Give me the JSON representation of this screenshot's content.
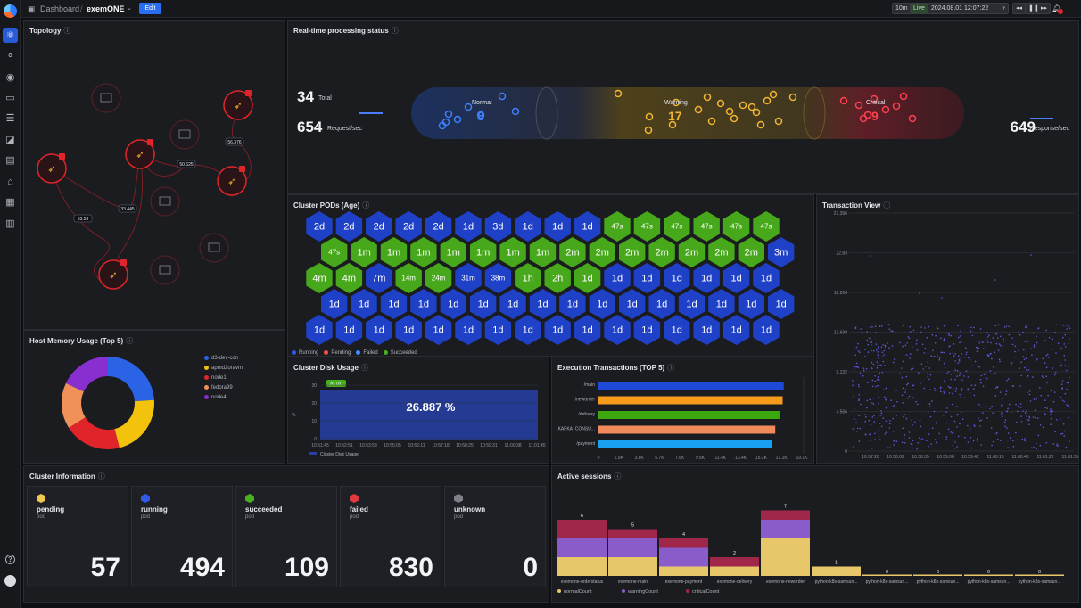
{
  "header": {
    "breadcrumb_root": "Dashboard",
    "separator": "/",
    "dashboard_name": "exemONE",
    "edit_label": "Edit",
    "range_label": "10m",
    "live_label": "Live",
    "datetime": "2024.08.01 12:07:22",
    "rewind_icon": "rewind-icon",
    "pause_icon": "pause-icon",
    "forward_icon": "fast-forward-icon",
    "notification_icon": "bell-icon"
  },
  "sidebar": {
    "items": [
      {
        "icon": "topology-icon",
        "glyph": "⚛"
      },
      {
        "icon": "nodes-icon",
        "glyph": "⚬"
      },
      {
        "icon": "target-icon",
        "glyph": "◉"
      },
      {
        "icon": "monitor-icon",
        "glyph": "▭"
      },
      {
        "icon": "database-icon",
        "glyph": "☰"
      },
      {
        "icon": "image-icon",
        "glyph": "◪"
      },
      {
        "icon": "report-icon",
        "glyph": "▤"
      },
      {
        "icon": "alert-icon",
        "glyph": "⌂"
      },
      {
        "icon": "grid-icon",
        "glyph": "▦"
      },
      {
        "icon": "document-icon",
        "glyph": "▥"
      }
    ],
    "help_icon": "help-icon",
    "help_glyph": "?",
    "avatar_icon": "avatar-icon"
  },
  "topology": {
    "title": "Topology",
    "edge_labels": [
      "56.376",
      "50.625",
      "33.445",
      "53.53"
    ]
  },
  "realtime": {
    "title": "Real-time processing status",
    "total_value": "34",
    "total_label": "Total",
    "request_value": "654",
    "request_label": "Request/sec",
    "response_value": "649",
    "response_label": "Response/sec",
    "normal_label": "Normal",
    "normal_count": "8",
    "warning_label": "Warning",
    "warning_count": "17",
    "critical_label": "Critical",
    "critical_count": "9"
  },
  "pods": {
    "title": "Cluster PODs (Age)",
    "rows": [
      [
        "2d",
        "2d",
        "2d",
        "2d",
        "2d",
        "1d",
        "3d",
        "1d",
        "1d",
        "1d",
        "47s",
        "47s",
        "47s",
        "47s",
        "47s",
        "47s"
      ],
      [
        "47s",
        "1m",
        "1m",
        "1m",
        "1m",
        "1m",
        "1m",
        "1m",
        "2m",
        "2m",
        "2m",
        "2m",
        "2m",
        "2m",
        "2m",
        "3m"
      ],
      [
        "4m",
        "4m",
        "7m",
        "14m",
        "24m",
        "31m",
        "38m",
        "1h",
        "2h",
        "1d",
        "1d",
        "1d",
        "1d",
        "1d",
        "1d",
        "1d"
      ],
      [
        "1d",
        "1d",
        "1d",
        "1d",
        "1d",
        "1d",
        "1d",
        "1d",
        "1d",
        "1d",
        "1d",
        "1d",
        "1d",
        "1d",
        "1d",
        "1d"
      ],
      [
        "1d",
        "1d",
        "1d",
        "1d",
        "1d",
        "1d",
        "1d",
        "1d",
        "1d",
        "1d",
        "1d",
        "1d",
        "1d",
        "1d",
        "1d",
        "1d"
      ]
    ],
    "colors": [
      [
        "b",
        "b",
        "b",
        "b",
        "b",
        "b",
        "b",
        "b",
        "b",
        "b",
        "g",
        "g",
        "g",
        "g",
        "g",
        "g"
      ],
      [
        "g",
        "g",
        "g",
        "g",
        "g",
        "g",
        "g",
        "g",
        "g",
        "g",
        "g",
        "g",
        "g",
        "g",
        "g",
        "b"
      ],
      [
        "g",
        "g",
        "b",
        "g",
        "g",
        "b",
        "b",
        "g",
        "g",
        "g",
        "b",
        "b",
        "b",
        "b",
        "b",
        "b"
      ],
      [
        "b",
        "b",
        "b",
        "b",
        "b",
        "b",
        "b",
        "b",
        "b",
        "b",
        "b",
        "b",
        "b",
        "b",
        "b",
        "b"
      ],
      [
        "b",
        "b",
        "b",
        "b",
        "b",
        "b",
        "b",
        "b",
        "b",
        "b",
        "b",
        "b",
        "b",
        "b",
        "b",
        "b"
      ]
    ],
    "legend": [
      {
        "label": "Running",
        "color": "#2f5be8"
      },
      {
        "label": "Pending",
        "color": "#f0504a"
      },
      {
        "label": "Failed",
        "color": "#3f8cff"
      },
      {
        "label": "Succeeded",
        "color": "#46b020"
      }
    ]
  },
  "transaction_view": {
    "title": "Transaction View",
    "y_ticks": [
      "27.396",
      "22.83",
      "18.264",
      "13.698",
      "9.132",
      "4.566",
      "0"
    ],
    "x_ticks": [
      "10:57:28",
      "10:58:02",
      "10:58:35",
      "10:59:08",
      "10:59:42",
      "11:00:15",
      "11:00:48",
      "11:01:22",
      "11:01:55"
    ]
  },
  "host_memory": {
    "title": "Host Memory Usage (Top 5)",
    "legend": [
      {
        "label": "d3-dev-con",
        "color": "#2b63e6"
      },
      {
        "label": "apmd2oravm",
        "color": "#f2c20c"
      },
      {
        "label": "node1",
        "color": "#e0252a"
      },
      {
        "label": "fedora99",
        "color": "#f0915a"
      },
      {
        "label": "node4",
        "color": "#8a2fcf"
      }
    ],
    "values": [
      24,
      22,
      20,
      16,
      18
    ]
  },
  "disk": {
    "title": "Cluster Disk Usage",
    "value": "26.887 %",
    "tooltip": "26.181",
    "y_ticks": [
      "30",
      "20",
      "10",
      "0"
    ],
    "y_unit": "%",
    "x_ticks": [
      "10:51:45",
      "10:52:51",
      "10:53:58",
      "10:55:05",
      "10:56:11",
      "10:57:18",
      "10:58:25",
      "10:59:31",
      "11:00:38",
      "11:01:45"
    ],
    "legend": "Cluster Disk Usage"
  },
  "exec": {
    "title": "Execution Transactions (TOP 5)",
    "categories": [
      "/main",
      "/neworder",
      "/delivery",
      "KAFKA_CONSU...",
      "/payment"
    ],
    "colors": [
      "#1f49d8",
      "#f69a1c",
      "#3ba80f",
      "#f08a5b",
      "#1aa0f0"
    ],
    "values": [
      17.4,
      17.3,
      17.0,
      16.6,
      16.3
    ],
    "x_ticks": [
      "0",
      "1.9K",
      "3.8K",
      "5.7K",
      "7.6K",
      "9.5K",
      "11.4K",
      "13.4K",
      "15.3K",
      "17.2K",
      "19.1K"
    ]
  },
  "cluster_info": {
    "title": "Cluster Information",
    "items": [
      {
        "name": "pending",
        "sub": "pod",
        "value": "57",
        "color": "#f2c94c",
        "icon": "pending-icon"
      },
      {
        "name": "running",
        "sub": "pod",
        "value": "494",
        "color": "#2f5be8",
        "icon": "running-icon"
      },
      {
        "name": "succeeded",
        "sub": "pod",
        "value": "109",
        "color": "#46b020",
        "icon": "succeeded-icon"
      },
      {
        "name": "failed",
        "sub": "pod",
        "value": "830",
        "color": "#e03a3e",
        "icon": "failed-icon"
      },
      {
        "name": "unknown",
        "sub": "pod",
        "value": "0",
        "color": "#7c8088",
        "icon": "unknown-icon"
      }
    ]
  },
  "sessions": {
    "title": "Active sessions",
    "categories": [
      "exemone-orderstatus",
      "exemone-main",
      "exemone-payment",
      "exemone-delivery",
      "exemone-neworder",
      "python-k8s-samsun...",
      "python-k8s-samsun...",
      "python-k8s-samsun...",
      "python-k8s-samsun...",
      "python-k8s-samsun..."
    ],
    "totals": [
      "6",
      "5",
      "4",
      "2",
      "7",
      "1",
      "0",
      "0",
      "0",
      "0"
    ],
    "normal": [
      2,
      2,
      1,
      1,
      4,
      1,
      0,
      0,
      0,
      0
    ],
    "warning": [
      2,
      2,
      2,
      0,
      2,
      0,
      0,
      0,
      0,
      0
    ],
    "critical": [
      2,
      1,
      1,
      1,
      1,
      0,
      0,
      0,
      0,
      0
    ],
    "legend": [
      {
        "label": "normalCount",
        "color": "#e8c76a"
      },
      {
        "label": "warningCount",
        "color": "#8a5cc9"
      },
      {
        "label": "criticalCount",
        "color": "#a0264a"
      }
    ]
  }
}
